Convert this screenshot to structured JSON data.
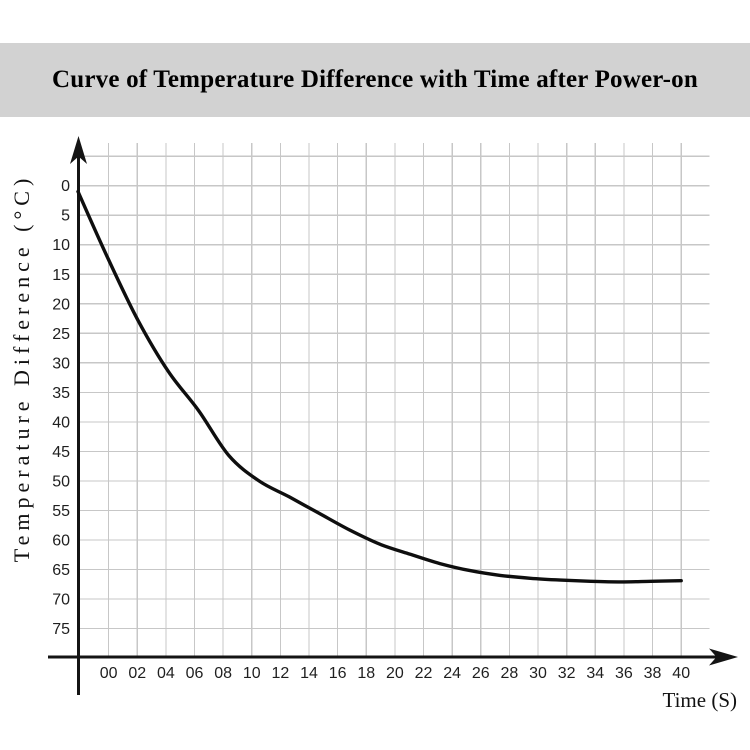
{
  "page": {
    "background": "#ffffff"
  },
  "header": {
    "title": "Curve of Temperature Difference with Time after Power-on",
    "background": "#d2d2d2",
    "text_color": "#000000"
  },
  "chart_data": {
    "type": "line",
    "title": "Curve of Temperature Difference with Time after Power-on",
    "xlabel": "Time (S)",
    "ylabel": "Temperature Difference (°C)",
    "x_tick_labels": [
      "00",
      "02",
      "04",
      "06",
      "08",
      "10",
      "12",
      "14",
      "16",
      "18",
      "20",
      "22",
      "24",
      "26",
      "28",
      "30",
      "32",
      "34",
      "36",
      "38",
      "40"
    ],
    "y_tick_labels": [
      "0",
      "5",
      "10",
      "15",
      "20",
      "25",
      "30",
      "35",
      "40",
      "45",
      "50",
      "55",
      "60",
      "65",
      "70",
      "75"
    ],
    "axes": {
      "x_range_s": [
        0,
        40
      ],
      "y_tick_step": 5,
      "y_tick_range": [
        0,
        75
      ],
      "y_direction": "values-increase-downward",
      "grid": true,
      "grid_x_step_s": 2,
      "grid_y_step": 5
    },
    "series": [
      {
        "name": "temperature-difference-curve",
        "points": [
          [
            0,
            1.0
          ],
          [
            2,
            12.4
          ],
          [
            4,
            22.9
          ],
          [
            6,
            31.5
          ],
          [
            8,
            38.1
          ],
          [
            10,
            45.7
          ],
          [
            12,
            50.0
          ],
          [
            14,
            52.7
          ],
          [
            16,
            55.5
          ],
          [
            18,
            58.3
          ],
          [
            20,
            60.7
          ],
          [
            22,
            62.4
          ],
          [
            24,
            64.0
          ],
          [
            26,
            65.2
          ],
          [
            28,
            66.0
          ],
          [
            30,
            66.5
          ],
          [
            32,
            66.8
          ],
          [
            34,
            67.0
          ],
          [
            36,
            67.1
          ],
          [
            38,
            67.0
          ],
          [
            40,
            66.9
          ]
        ]
      }
    ],
    "colors": {
      "curve": "#0e0e0e",
      "grid": "#c7c7c7",
      "axis": "#141414",
      "tick_text": "#1f1f1f"
    }
  }
}
